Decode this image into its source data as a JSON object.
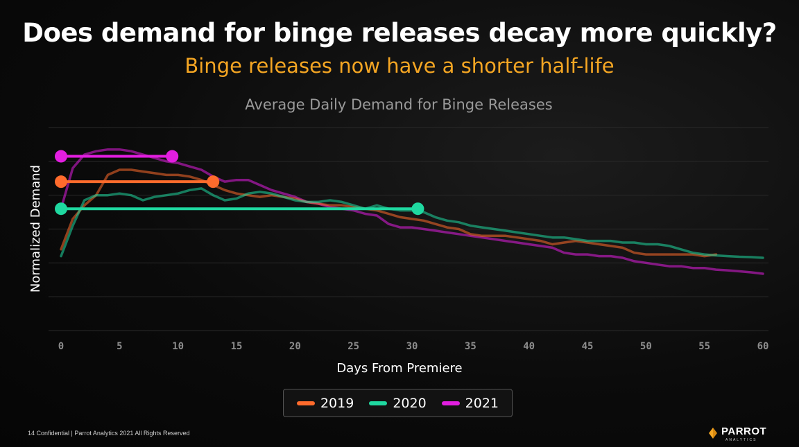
{
  "slide": {
    "title": "Does demand for binge releases decay more quickly?",
    "subtitle": "Binge releases now have a shorter half-life",
    "footer": "14 Confidential | Parrot Analytics 2021 All Rights Reserved",
    "logo_text": "PARROT",
    "logo_sub": "ANALYTICS",
    "subtitle_color": "#f5a623"
  },
  "chart_data": {
    "type": "line",
    "title": "Average Daily Demand for Binge Releases",
    "xlabel": "Days From Premiere",
    "ylabel": "Normalized Demand",
    "xlim": [
      0,
      60
    ],
    "ylim": [
      0,
      6
    ],
    "x_ticks": [
      "0",
      "5",
      "10",
      "15",
      "20",
      "25",
      "30",
      "35",
      "40",
      "45",
      "50",
      "55",
      "60"
    ],
    "grid": true,
    "legend_position": "bottom",
    "series": [
      {
        "name": "2019",
        "color": "#ff6b2c",
        "x": [
          0,
          1,
          2,
          3,
          4,
          5,
          6,
          7,
          8,
          9,
          10,
          11,
          12,
          13,
          14,
          15,
          16,
          17,
          18,
          19,
          20,
          21,
          22,
          23,
          24,
          25,
          26,
          27,
          28,
          29,
          30,
          31,
          32,
          33,
          34,
          35,
          36,
          37,
          38,
          39,
          40,
          41,
          42,
          43,
          44,
          45,
          46,
          47,
          48,
          49,
          50,
          51,
          52,
          53,
          54,
          55,
          56
        ],
        "values": [
          2.4,
          3.3,
          3.7,
          4.0,
          4.6,
          4.75,
          4.75,
          4.7,
          4.65,
          4.6,
          4.6,
          4.55,
          4.45,
          4.3,
          4.15,
          4.05,
          4.0,
          3.95,
          4.0,
          3.95,
          3.9,
          3.8,
          3.75,
          3.7,
          3.7,
          3.65,
          3.6,
          3.55,
          3.45,
          3.35,
          3.3,
          3.25,
          3.15,
          3.05,
          3.0,
          2.85,
          2.8,
          2.8,
          2.8,
          2.75,
          2.7,
          2.65,
          2.55,
          2.6,
          2.65,
          2.6,
          2.55,
          2.5,
          2.45,
          2.3,
          2.25,
          2.25,
          2.25,
          2.25,
          2.25,
          2.2,
          2.25
        ],
        "half_life_days": 13,
        "half_life_level": 4.4
      },
      {
        "name": "2020",
        "color": "#1fd8a0",
        "x": [
          0,
          1,
          2,
          3,
          4,
          5,
          6,
          7,
          8,
          9,
          10,
          11,
          12,
          13,
          14,
          15,
          16,
          17,
          18,
          19,
          20,
          21,
          22,
          23,
          24,
          25,
          26,
          27,
          28,
          29,
          30,
          31,
          32,
          33,
          34,
          35,
          36,
          37,
          38,
          39,
          40,
          41,
          42,
          43,
          44,
          45,
          46,
          47,
          48,
          49,
          50,
          51,
          52,
          53,
          54,
          55,
          56,
          57,
          58,
          59,
          60
        ],
        "values": [
          2.2,
          3.1,
          3.85,
          4.0,
          4.0,
          4.05,
          4.0,
          3.85,
          3.95,
          4.0,
          4.05,
          4.15,
          4.2,
          4.0,
          3.85,
          3.9,
          4.05,
          4.1,
          4.05,
          3.95,
          3.85,
          3.8,
          3.8,
          3.85,
          3.8,
          3.7,
          3.6,
          3.7,
          3.6,
          3.55,
          3.55,
          3.5,
          3.35,
          3.25,
          3.2,
          3.1,
          3.05,
          3.0,
          2.95,
          2.9,
          2.85,
          2.8,
          2.75,
          2.75,
          2.7,
          2.65,
          2.65,
          2.65,
          2.6,
          2.6,
          2.55,
          2.55,
          2.5,
          2.4,
          2.3,
          2.25,
          2.22,
          2.2,
          2.18,
          2.17,
          2.15
        ],
        "half_life_days": 30.5,
        "half_life_level": 3.6
      },
      {
        "name": "2021",
        "color": "#e21ee0",
        "x": [
          0,
          1,
          2,
          3,
          4,
          5,
          6,
          7,
          8,
          9,
          10,
          11,
          12,
          13,
          14,
          15,
          16,
          17,
          18,
          19,
          20,
          21,
          22,
          23,
          24,
          25,
          26,
          27,
          28,
          29,
          30,
          31,
          32,
          33,
          34,
          35,
          36,
          37,
          38,
          39,
          40,
          41,
          42,
          43,
          44,
          45,
          46,
          47,
          48,
          49,
          50,
          51,
          52,
          53,
          54,
          55,
          56,
          57,
          58,
          59,
          60
        ],
        "values": [
          3.6,
          4.8,
          5.2,
          5.3,
          5.35,
          5.35,
          5.3,
          5.2,
          5.1,
          5.0,
          4.95,
          4.85,
          4.75,
          4.55,
          4.4,
          4.45,
          4.45,
          4.3,
          4.15,
          4.05,
          3.95,
          3.8,
          3.75,
          3.65,
          3.6,
          3.55,
          3.45,
          3.4,
          3.15,
          3.05,
          3.05,
          3.0,
          2.95,
          2.9,
          2.85,
          2.8,
          2.75,
          2.7,
          2.65,
          2.6,
          2.55,
          2.5,
          2.45,
          2.3,
          2.25,
          2.25,
          2.2,
          2.2,
          2.15,
          2.05,
          2.0,
          1.95,
          1.9,
          1.9,
          1.85,
          1.85,
          1.8,
          1.78,
          1.75,
          1.72,
          1.68
        ],
        "half_life_days": 9.5,
        "half_life_level": 5.15
      }
    ]
  }
}
